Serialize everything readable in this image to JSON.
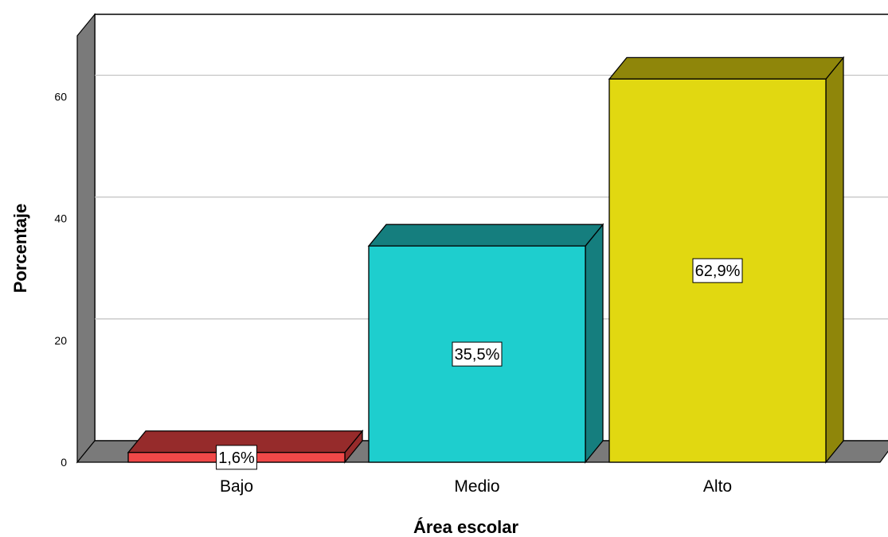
{
  "chart_data": {
    "type": "bar",
    "style": "3d",
    "title": "",
    "xlabel": "Área escolar",
    "ylabel": "Porcentaje",
    "ylim": [
      0,
      70
    ],
    "yticks": [
      0,
      20,
      40,
      60
    ],
    "grid": true,
    "categories": [
      "Bajo",
      "Medio",
      "Alto"
    ],
    "values": [
      1.6,
      35.5,
      62.9
    ],
    "data_labels": [
      "1,6%",
      "35,5%",
      "62,9%"
    ],
    "colors": {
      "front": [
        "#f04848",
        "#1ecece",
        "#e1d811"
      ],
      "side": [
        "#962b2b",
        "#157e7e",
        "#8f860a"
      ],
      "wall": "#7a7a7a",
      "gridline": "#c0c0c0"
    }
  }
}
